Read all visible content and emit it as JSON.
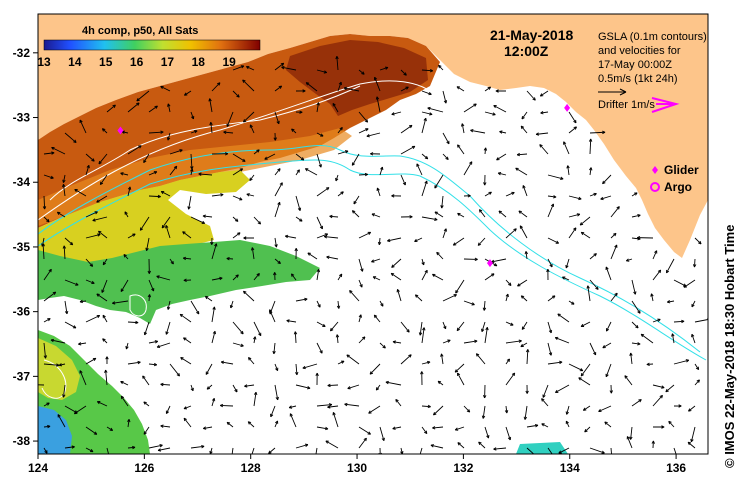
{
  "title": {
    "date": "21-May-2018",
    "time": "12:00Z"
  },
  "colorbar": {
    "label": "4h comp, p50, All Sats",
    "ticks": [
      "13",
      "14",
      "15",
      "16",
      "17",
      "18",
      "19"
    ],
    "range_c": [
      13,
      20
    ]
  },
  "legend": {
    "gsla_line1": "GSLA (0.1m contours)",
    "gsla_line2": "and velocities for",
    "gsla_line3": "17-May 00:00Z",
    "scale_text": "0.5m/s (1kt 24h)",
    "drifter_text": "Drifter 1m/s",
    "glider_text": "Glider",
    "argo_text": "Argo",
    "drifter_color": "#ff00ff",
    "glider_color": "#ff00ff",
    "argo_color": "#ff00ff"
  },
  "axes": {
    "x_ticks": [
      "124",
      "126",
      "128",
      "130",
      "132",
      "134",
      "136"
    ],
    "y_ticks": [
      "-32",
      "-33",
      "-34",
      "-35",
      "-36",
      "-37",
      "-38"
    ],
    "lon_range": [
      124,
      136.6
    ],
    "lat_range": [
      -38.2,
      -31.4
    ]
  },
  "credit": "© IMOS 22-May-2018 18:30 Hobart Time",
  "colors": {
    "land": "#fdc58a",
    "ocean_nodata": "#ffffff",
    "contour_white": "#ffffff",
    "contour_cyan": "#33e0e8",
    "arrow": "#000000"
  },
  "markers": {
    "gliders": [
      {
        "lon": 125.55,
        "lat": -33.2
      },
      {
        "lon": 132.5,
        "lat": -35.25
      },
      {
        "lon": 133.95,
        "lat": -32.85
      }
    ]
  }
}
